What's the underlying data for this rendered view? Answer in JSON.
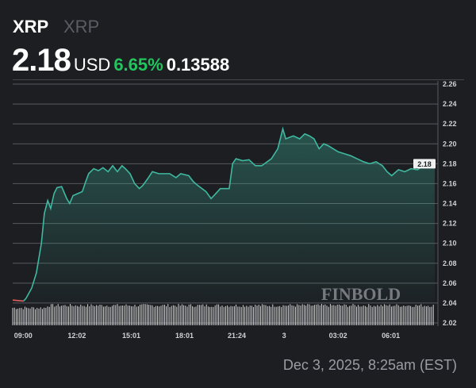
{
  "header": {
    "symbol": "XRP",
    "name": "XRP",
    "price": "2.18",
    "currency": "USD",
    "change_pct": "6.65%",
    "change_abs": "0.13588"
  },
  "footer": {
    "date": "Dec 3, 2025, 8:25am (EST)"
  },
  "watermark": "FINBOLD",
  "colors": {
    "line": "#3fb8a0",
    "down": "#e06060",
    "up_text": "#22c55e",
    "bg": "#1c1e22"
  },
  "chart_data": {
    "type": "line",
    "title": "XRP",
    "xlabel": "",
    "ylabel": "USD",
    "ylim": [
      2.02,
      2.26
    ],
    "grid": true,
    "y_ticks": [
      "2.02",
      "2.04",
      "2.06",
      "2.08",
      "2.10",
      "2.12",
      "2.14",
      "2.16",
      "2.18",
      "2.20",
      "2.22",
      "2.24",
      "2.26"
    ],
    "x_ticks": [
      "09:00",
      "12:02",
      "15:01",
      "18:01",
      "21:24",
      "3",
      "03:02",
      "06:01"
    ],
    "x_tick_pos": [
      0.025,
      0.152,
      0.281,
      0.407,
      0.531,
      0.643,
      0.771,
      0.896
    ],
    "current_label": "2.18",
    "current_value": 2.18,
    "series": [
      {
        "name": "XRP/USD",
        "x": [
          0,
          0.026,
          0.032,
          0.045,
          0.056,
          0.068,
          0.075,
          0.083,
          0.09,
          0.098,
          0.105,
          0.116,
          0.128,
          0.135,
          0.143,
          0.154,
          0.165,
          0.173,
          0.18,
          0.192,
          0.203,
          0.214,
          0.226,
          0.237,
          0.248,
          0.259,
          0.267,
          0.278,
          0.289,
          0.3,
          0.308,
          0.32,
          0.331,
          0.346,
          0.372,
          0.387,
          0.398,
          0.417,
          0.428,
          0.439,
          0.458,
          0.47,
          0.477,
          0.492,
          0.513,
          0.521,
          0.529,
          0.545,
          0.56,
          0.575,
          0.59,
          0.613,
          0.628,
          0.64,
          0.647,
          0.665,
          0.68,
          0.692,
          0.703,
          0.714,
          0.726,
          0.737,
          0.748,
          0.771,
          0.786,
          0.801,
          0.816,
          0.831,
          0.846,
          0.861,
          0.876,
          0.887,
          0.898,
          0.914,
          0.929,
          0.944,
          0.959,
          0.974,
          0.985,
          1
        ],
        "y": [
          2.043,
          2.042,
          2.045,
          2.055,
          2.07,
          2.1,
          2.13,
          2.143,
          2.135,
          2.15,
          2.156,
          2.157,
          2.145,
          2.14,
          2.148,
          2.15,
          2.152,
          2.162,
          2.17,
          2.175,
          2.173,
          2.176,
          2.172,
          2.178,
          2.172,
          2.178,
          2.175,
          2.17,
          2.16,
          2.155,
          2.158,
          2.165,
          2.172,
          2.17,
          2.17,
          2.166,
          2.17,
          2.168,
          2.162,
          2.158,
          2.152,
          2.145,
          2.148,
          2.155,
          2.155,
          2.18,
          2.185,
          2.183,
          2.184,
          2.178,
          2.178,
          2.185,
          2.195,
          2.215,
          2.205,
          2.208,
          2.205,
          2.21,
          2.208,
          2.205,
          2.195,
          2.2,
          2.198,
          2.192,
          2.19,
          2.188,
          2.185,
          2.182,
          2.18,
          2.182,
          2.178,
          2.172,
          2.168,
          2.174,
          2.172,
          2.175,
          2.174,
          2.178,
          2.178,
          2.18
        ],
        "down_until": 0.03
      }
    ]
  }
}
